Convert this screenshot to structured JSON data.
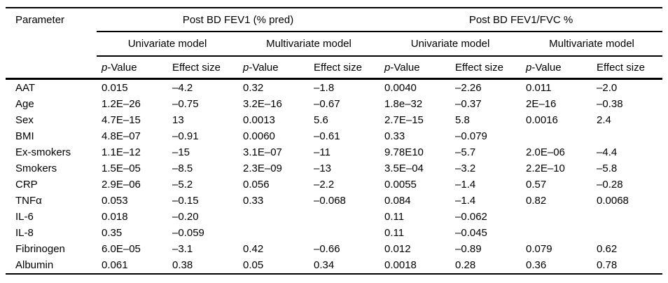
{
  "table": {
    "corner_label": "Parameter",
    "col_groups": [
      {
        "label": "Post BD FEV1 (% pred)"
      },
      {
        "label": "Post BD FEV1/FVC %"
      }
    ],
    "model_headers": [
      "Univariate model",
      "Multivariate model",
      "Univariate model",
      "Multivariate model"
    ],
    "metric_p_italic": "p",
    "metric_p_rest": "-Value",
    "metric_effect": "Effect size",
    "rows": [
      {
        "param": "AAT",
        "values": [
          "0.015",
          "–4.2",
          "0.32",
          "–1.8",
          "0.0040",
          "–2.26",
          "0.011",
          "–2.0"
        ]
      },
      {
        "param": "Age",
        "values": [
          "1.2E–26",
          "–0.75",
          "3.2E–16",
          "–0.67",
          "1.8e–32",
          "–0.37",
          "2E–16",
          "–0.38"
        ]
      },
      {
        "param": "Sex",
        "values": [
          "4.7E–15",
          "13",
          "0.0013",
          "5.6",
          "2.7E–15",
          "5.8",
          "0.0016",
          "2.4"
        ]
      },
      {
        "param": "BMI",
        "values": [
          "4.8E–07",
          "–0.91",
          "0.0060",
          "–0.61",
          "0.33",
          "–0.079",
          "",
          ""
        ]
      },
      {
        "param": "Ex-smokers",
        "values": [
          "1.1E–12",
          "–15",
          "3.1E–07",
          "–11",
          "9.78E10",
          "–5.7",
          "2.0E–06",
          "–4.4"
        ]
      },
      {
        "param": "Smokers",
        "values": [
          "1.5E–05",
          "–8.5",
          "2.3E–09",
          "–13",
          "3.5E–04",
          "–3.2",
          "2.2E–10",
          "–5.8"
        ]
      },
      {
        "param": "CRP",
        "values": [
          "2.9E–06",
          "–5.2",
          "0.056",
          "–2.2",
          "0.0055",
          "–1.4",
          "0.57",
          "–0.28"
        ]
      },
      {
        "param": "TNFα",
        "values": [
          "0.053",
          "–0.15",
          "0.33",
          "–0.068",
          "0.084",
          "–1.4",
          "0.82",
          "0.0068"
        ]
      },
      {
        "param": "IL-6",
        "values": [
          "0.018",
          "–0.20",
          "",
          "",
          "0.11",
          "–0.062",
          "",
          ""
        ]
      },
      {
        "param": "IL-8",
        "values": [
          "0.35",
          "–0.059",
          "",
          "",
          "0.11",
          "–0.045",
          "",
          ""
        ]
      },
      {
        "param": "Fibrinogen",
        "values": [
          "6.0E–05",
          "–3.1",
          "0.42",
          "–0.66",
          "0.012",
          "–0.89",
          "0.079",
          "0.62"
        ]
      },
      {
        "param": "Albumin",
        "values": [
          "0.061",
          "0.38",
          "0.05",
          "0.34",
          "0.0018",
          "0.28",
          "0.36",
          "0.78"
        ]
      }
    ]
  }
}
